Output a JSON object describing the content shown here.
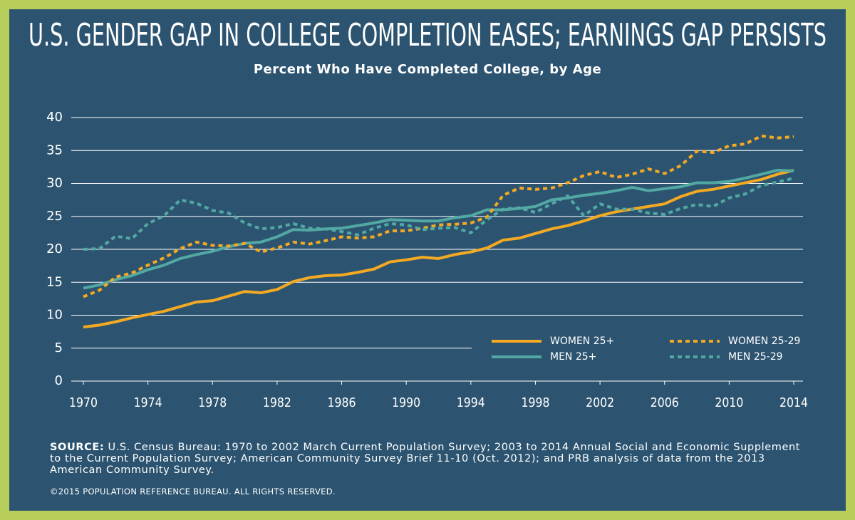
{
  "chart_data": {
    "type": "line",
    "title": "U.S. GENDER GAP IN COLLEGE COMPLETION EASES; EARNINGS GAP PERSISTS",
    "subtitle": "Percent Who Have Completed College, by Age",
    "x": [
      1970,
      1971,
      1972,
      1973,
      1974,
      1975,
      1976,
      1977,
      1978,
      1979,
      1980,
      1981,
      1982,
      1983,
      1984,
      1985,
      1986,
      1987,
      1988,
      1989,
      1990,
      1991,
      1992,
      1993,
      1994,
      1995,
      1996,
      1997,
      1998,
      1999,
      2000,
      2001,
      2002,
      2003,
      2004,
      2005,
      2006,
      2007,
      2008,
      2009,
      2010,
      2011,
      2012,
      2013,
      2014
    ],
    "xlim": [
      1970,
      2014
    ],
    "xticks": [
      1970,
      1974,
      1978,
      1982,
      1986,
      1990,
      1994,
      1998,
      2002,
      2006,
      2010,
      2014
    ],
    "ylim": [
      0,
      40
    ],
    "yticks": [
      0,
      5,
      10,
      15,
      20,
      25,
      30,
      35,
      40
    ],
    "grid": true,
    "series": [
      {
        "name": "WOMEN 25+",
        "color": "#f4a922",
        "dashed": false,
        "values": [
          8.2,
          8.5,
          9.0,
          9.6,
          10.1,
          10.6,
          11.3,
          12.0,
          12.2,
          12.9,
          13.6,
          13.4,
          13.9,
          15.1,
          15.7,
          16.0,
          16.1,
          16.5,
          17.0,
          18.1,
          18.4,
          18.8,
          18.6,
          19.2,
          19.6,
          20.2,
          21.4,
          21.7,
          22.4,
          23.1,
          23.6,
          24.3,
          25.1,
          25.7,
          26.1,
          26.5,
          26.9,
          28.0,
          28.8,
          29.1,
          29.6,
          30.1,
          30.6,
          31.4,
          32.0
        ]
      },
      {
        "name": "MEN 25+",
        "color": "#52a8a3",
        "dashed": false,
        "values": [
          14.1,
          14.6,
          15.4,
          16.0,
          16.9,
          17.6,
          18.6,
          19.2,
          19.7,
          20.4,
          20.9,
          21.1,
          21.9,
          23.0,
          22.9,
          23.1,
          23.2,
          23.6,
          24.0,
          24.5,
          24.4,
          24.3,
          24.3,
          24.8,
          25.1,
          26.0,
          26.0,
          26.2,
          26.5,
          27.5,
          27.8,
          28.2,
          28.5,
          28.9,
          29.4,
          28.9,
          29.2,
          29.5,
          30.1,
          30.1,
          30.3,
          30.8,
          31.4,
          32.0,
          31.9
        ]
      },
      {
        "name": "WOMEN 25-29",
        "color": "#f4a922",
        "dashed": true,
        "values": [
          12.8,
          13.8,
          15.8,
          16.4,
          17.6,
          18.7,
          20.1,
          21.1,
          20.6,
          20.5,
          20.9,
          19.6,
          20.2,
          21.1,
          20.8,
          21.3,
          21.9,
          21.7,
          21.9,
          22.8,
          22.8,
          23.2,
          23.7,
          23.8,
          24.0,
          24.9,
          28.2,
          29.3,
          29.1,
          29.3,
          30.1,
          31.2,
          31.8,
          30.9,
          31.4,
          32.2,
          31.5,
          32.7,
          34.9,
          34.7,
          35.7,
          36.0,
          37.2,
          36.9,
          37.1
        ]
      },
      {
        "name": "MEN 25-29",
        "color": "#52a8a3",
        "dashed": true,
        "values": [
          20.0,
          20.1,
          22.0,
          21.6,
          23.9,
          25.1,
          27.5,
          27.0,
          25.9,
          25.5,
          24.0,
          23.1,
          23.3,
          23.9,
          23.2,
          23.1,
          22.7,
          22.2,
          23.2,
          23.9,
          23.7,
          23.0,
          23.2,
          23.3,
          22.5,
          24.5,
          26.1,
          26.3,
          25.6,
          26.9,
          28.1,
          25.1,
          26.9,
          26.1,
          26.1,
          25.5,
          25.3,
          26.2,
          26.8,
          26.5,
          27.8,
          28.4,
          29.7,
          30.2,
          30.8
        ]
      }
    ],
    "source_label": "SOURCE:",
    "source_text": "U.S. Census Bureau: 1970 to 2002 March Current Population Survey; 2003 to 2014 Annual Social and Economic Supplement to the Current Population Survey; American Community Survey Brief 11-10 (Oct. 2012); and PRB analysis of data from the 2013 American Community Survey.",
    "copyright": "©2015 POPULATION REFERENCE BUREAU. ALL RIGHTS RESERVED."
  }
}
